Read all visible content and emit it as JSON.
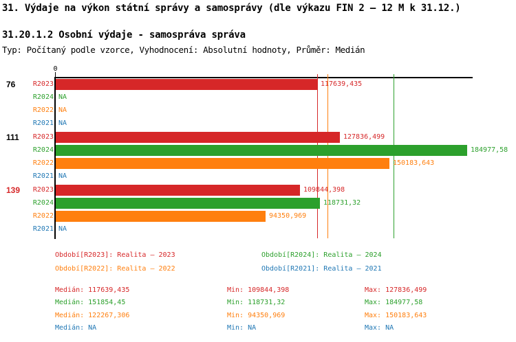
{
  "title": "31. Výdaje na výkon státní správy a samosprávy (dle výkazu FIN 2 – 12 M k 31.12.)",
  "subtitle": "31.20.1.2 Osobní výdaje - samospráva správa",
  "meta": "Typ: Počítaný podle vzorce, Vyhodnocení: Absolutní hodnoty, Průměr: Medián",
  "colors": {
    "R2023": "#d62728",
    "R2024": "#2ca02c",
    "R2022": "#ff7f0e",
    "R2021": "#1f77b4",
    "axis": "#000000",
    "group_alert": "#d62728",
    "group_normal": "#000000"
  },
  "chart_data": {
    "type": "bar",
    "orientation": "horizontal",
    "title": "31.20.1.2 Osobní výdaje - samospráva správa",
    "average_type": "Medián",
    "axis": {
      "zero_label": "0",
      "domain_min": 0,
      "domain_max": 187500,
      "grid": false
    },
    "series": [
      {
        "id": "R2023",
        "name": "Realita – 2023",
        "color": "#d62728"
      },
      {
        "id": "R2024",
        "name": "Realita – 2024",
        "color": "#2ca02c"
      },
      {
        "id": "R2022",
        "name": "Realita – 2022",
        "color": "#ff7f0e"
      },
      {
        "id": "R2021",
        "name": "Realita – 2021",
        "color": "#1f77b4"
      }
    ],
    "groups": [
      {
        "label": "76",
        "label_color": "#000000",
        "bars": [
          {
            "series": "R2023",
            "value": 117639.435,
            "label": "117639,435"
          },
          {
            "series": "R2024",
            "value": null,
            "label": "NA"
          },
          {
            "series": "R2022",
            "value": null,
            "label": "NA"
          },
          {
            "series": "R2021",
            "value": null,
            "label": "NA"
          }
        ]
      },
      {
        "label": "111",
        "label_color": "#000000",
        "bars": [
          {
            "series": "R2023",
            "value": 127836.499,
            "label": "127836,499"
          },
          {
            "series": "R2024",
            "value": 184977.58,
            "label": "184977,58"
          },
          {
            "series": "R2022",
            "value": 150183.643,
            "label": "150183,643"
          },
          {
            "series": "R2021",
            "value": null,
            "label": "NA"
          }
        ]
      },
      {
        "label": "139",
        "label_color": "#d62728",
        "bars": [
          {
            "series": "R2023",
            "value": 109844.398,
            "label": "109844,398"
          },
          {
            "series": "R2024",
            "value": 118731.32,
            "label": "118731,32"
          },
          {
            "series": "R2022",
            "value": 94350.969,
            "label": "94350,969"
          },
          {
            "series": "R2021",
            "value": null,
            "label": "NA"
          }
        ]
      }
    ],
    "median_lines": [
      {
        "series": "R2023",
        "value": 117639.435
      },
      {
        "series": "R2022",
        "value": 122267.306
      },
      {
        "series": "R2024",
        "value": 151854.45
      }
    ]
  },
  "legend": [
    {
      "series": "R2023",
      "label": "Období[R2023]: Realita – 2023"
    },
    {
      "series": "R2024",
      "label": "Období[R2024]: Realita – 2024"
    },
    {
      "series": "R2022",
      "label": "Období[R2022]: Realita – 2022"
    },
    {
      "series": "R2021",
      "label": "Období[R2021]: Realita – 2021"
    }
  ],
  "stats": {
    "rows": [
      {
        "series": "R2023",
        "median": "Medián: 117639,435",
        "min": "Min: 109844,398",
        "max": "Max: 127836,499"
      },
      {
        "series": "R2024",
        "median": "Medián: 151854,45",
        "min": "Min: 118731,32",
        "max": "Max: 184977,58"
      },
      {
        "series": "R2022",
        "median": "Medián: 122267,306",
        "min": "Min: 94350,969",
        "max": "Max: 150183,643"
      },
      {
        "series": "R2021",
        "median": "Medián: NA",
        "min": "Min: NA",
        "max": "Max: NA"
      }
    ]
  }
}
